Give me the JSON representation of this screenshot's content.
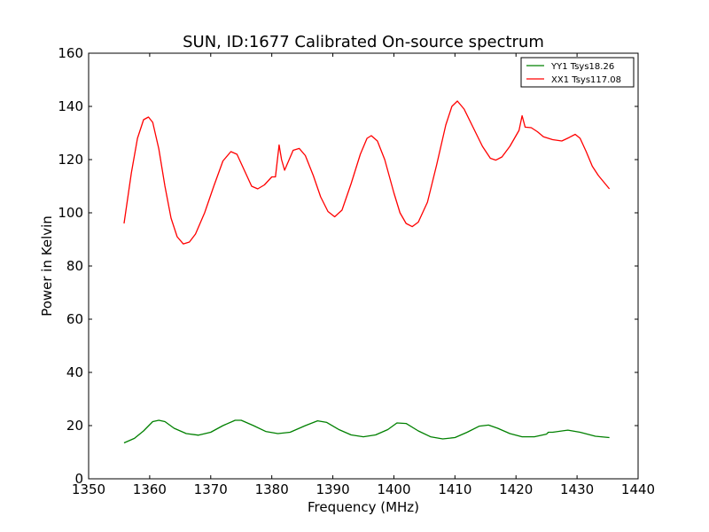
{
  "chart_data": {
    "type": "line",
    "title": "SUN, ID:1677 Calibrated On-source spectrum",
    "xlabel": "Frequency (MHz)",
    "ylabel": "Power in Kelvin",
    "xlim": [
      1350,
      1440
    ],
    "ylim": [
      0,
      160
    ],
    "xticks": [
      1350,
      1360,
      1370,
      1380,
      1390,
      1400,
      1410,
      1420,
      1430,
      1440
    ],
    "yticks": [
      0,
      20,
      40,
      60,
      80,
      100,
      120,
      140,
      160
    ],
    "grid": false,
    "legend_position": "top-right",
    "series": [
      {
        "name": "YY1 Tsys18.26",
        "color": "#008000",
        "points": [
          [
            1355.8,
            13.5
          ],
          [
            1357.5,
            15.2
          ],
          [
            1359.0,
            18.0
          ],
          [
            1360.5,
            21.5
          ],
          [
            1361.5,
            22.0
          ],
          [
            1362.5,
            21.5
          ],
          [
            1364.0,
            19.0
          ],
          [
            1366.0,
            17.0
          ],
          [
            1368.0,
            16.4
          ],
          [
            1370.0,
            17.5
          ],
          [
            1372.0,
            20.0
          ],
          [
            1374.0,
            22.0
          ],
          [
            1375.0,
            22.0
          ],
          [
            1377.0,
            20.0
          ],
          [
            1379.0,
            17.8
          ],
          [
            1381.0,
            17.0
          ],
          [
            1383.0,
            17.5
          ],
          [
            1385.5,
            20.0
          ],
          [
            1387.5,
            21.8
          ],
          [
            1389.0,
            21.2
          ],
          [
            1391.0,
            18.5
          ],
          [
            1393.0,
            16.5
          ],
          [
            1395.0,
            15.8
          ],
          [
            1397.0,
            16.5
          ],
          [
            1399.0,
            18.5
          ],
          [
            1400.5,
            21.0
          ],
          [
            1402.0,
            20.8
          ],
          [
            1404.0,
            18.0
          ],
          [
            1406.0,
            15.8
          ],
          [
            1408.0,
            15.0
          ],
          [
            1410.0,
            15.5
          ],
          [
            1412.0,
            17.5
          ],
          [
            1414.0,
            19.8
          ],
          [
            1415.5,
            20.2
          ],
          [
            1417.0,
            19.0
          ],
          [
            1419.0,
            17.0
          ],
          [
            1421.0,
            15.8
          ],
          [
            1423.0,
            15.8
          ],
          [
            1425.0,
            16.8
          ],
          [
            1425.3,
            17.5
          ],
          [
            1426.0,
            17.5
          ],
          [
            1428.5,
            18.3
          ],
          [
            1430.5,
            17.5
          ],
          [
            1433.0,
            16.0
          ],
          [
            1435.3,
            15.5
          ]
        ]
      },
      {
        "name": "XX1 Tsys117.08",
        "color": "#ff0000",
        "points": [
          [
            1355.8,
            96
          ],
          [
            1357.0,
            115
          ],
          [
            1358.0,
            128
          ],
          [
            1359.0,
            135
          ],
          [
            1359.8,
            136
          ],
          [
            1360.5,
            134
          ],
          [
            1361.5,
            124
          ],
          [
            1362.5,
            110
          ],
          [
            1363.5,
            98
          ],
          [
            1364.5,
            91
          ],
          [
            1365.5,
            88.3
          ],
          [
            1366.5,
            89
          ],
          [
            1367.5,
            92
          ],
          [
            1369.0,
            100
          ],
          [
            1370.5,
            110
          ],
          [
            1372.0,
            119.5
          ],
          [
            1373.3,
            123
          ],
          [
            1374.3,
            122
          ],
          [
            1375.5,
            116
          ],
          [
            1376.7,
            110
          ],
          [
            1377.7,
            109
          ],
          [
            1378.8,
            110.5
          ],
          [
            1380.0,
            113.5
          ],
          [
            1380.6,
            113.5
          ],
          [
            1381.2,
            125.5
          ],
          [
            1381.6,
            120
          ],
          [
            1382.1,
            116
          ],
          [
            1383.5,
            123.5
          ],
          [
            1384.5,
            124.2
          ],
          [
            1385.5,
            121.5
          ],
          [
            1386.8,
            114
          ],
          [
            1388.0,
            106
          ],
          [
            1389.2,
            100.5
          ],
          [
            1390.3,
            98.5
          ],
          [
            1391.5,
            101
          ],
          [
            1393.0,
            111
          ],
          [
            1394.5,
            122
          ],
          [
            1395.6,
            128
          ],
          [
            1396.3,
            129
          ],
          [
            1397.3,
            127
          ],
          [
            1398.5,
            120
          ],
          [
            1400.0,
            107.5
          ],
          [
            1401.0,
            100
          ],
          [
            1402.0,
            96
          ],
          [
            1403.0,
            94.8
          ],
          [
            1404.0,
            96.5
          ],
          [
            1405.5,
            104
          ],
          [
            1407.0,
            118
          ],
          [
            1408.5,
            133
          ],
          [
            1409.5,
            140
          ],
          [
            1410.4,
            142
          ],
          [
            1411.5,
            139
          ],
          [
            1413.0,
            132
          ],
          [
            1414.5,
            125
          ],
          [
            1415.8,
            120.5
          ],
          [
            1416.7,
            119.8
          ],
          [
            1417.7,
            121
          ],
          [
            1419.0,
            125
          ],
          [
            1420.5,
            131
          ],
          [
            1421.0,
            136.5
          ],
          [
            1421.5,
            132.2
          ],
          [
            1422.5,
            132
          ],
          [
            1423.5,
            130.5
          ],
          [
            1424.5,
            128.6
          ],
          [
            1426.0,
            127.5
          ],
          [
            1427.5,
            127
          ],
          [
            1428.7,
            128.3
          ],
          [
            1429.7,
            129.5
          ],
          [
            1430.5,
            128
          ],
          [
            1431.5,
            123
          ],
          [
            1432.5,
            117.5
          ],
          [
            1433.5,
            114
          ],
          [
            1435.3,
            109
          ]
        ]
      }
    ]
  }
}
